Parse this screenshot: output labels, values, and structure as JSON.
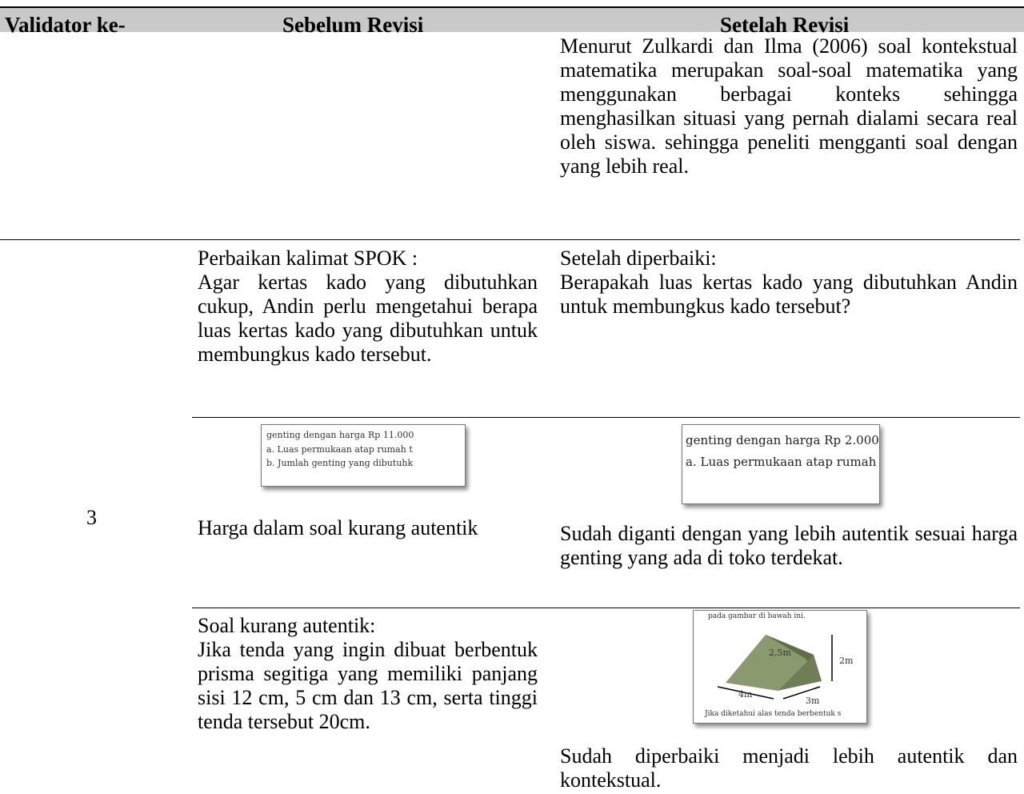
{
  "table": {
    "headers": [
      "Validator ke-",
      "Sebelum Revisi",
      "Setelah Revisi"
    ],
    "validator": "3",
    "rows": [
      {
        "after": "Menurut Zulkardi dan Ilma (2006) soal kontekstual matematika merupakan soal-soal matematika yang menggunakan berbagai konteks sehingga menghasilkan situasi yang pernah dialami secara real oleh siswa. sehingga peneliti mengganti soal dengan yang lebih real."
      },
      {
        "before_title": "Perbaikan kalimat SPOK :",
        "before": "Agar kertas kado yang dibutuhkan cukup, Andin perlu mengetahui berapa luas kertas kado yang dibutuhkan untuk membungkus kado tersebut.",
        "after_title": "Setelah diperbaiki:",
        "after": "Berapakah luas kertas kado yang dibutuhkan Andin untuk membungkus kado tersebut?"
      },
      {
        "before_image": [
          "genting dengan harga Rp 11.000",
          "a.  Luas permukaan atap rumah t",
          "b.  Jumlah genting yang dibutuhk"
        ],
        "before": "Harga dalam soal kurang autentik",
        "after_image": [
          "genting dengan harga Rp 2.000",
          "a.  Luas permukaan atap rumah"
        ],
        "after": "Sudah diganti dengan yang lebih autentik sesuai harga genting yang ada di toko terdekat."
      },
      {
        "before_title": "Soal kurang autentik:",
        "before": "Jika tenda yang ingin dibuat berbentuk prisma segitiga yang memiliki panjang sisi 12 cm, 5 cm dan 13 cm, serta tinggi tenda tersebut 20cm.",
        "after_image": {
          "caption": "pada gambar di bawah ini.",
          "labels": [
            "2,5m",
            "2m",
            "4m",
            "3m"
          ],
          "footer": "Jika diketahui alas tenda berbentuk s"
        },
        "after": "Sudah diperbaiki menjadi lebih autentik dan kontekstual."
      }
    ]
  }
}
